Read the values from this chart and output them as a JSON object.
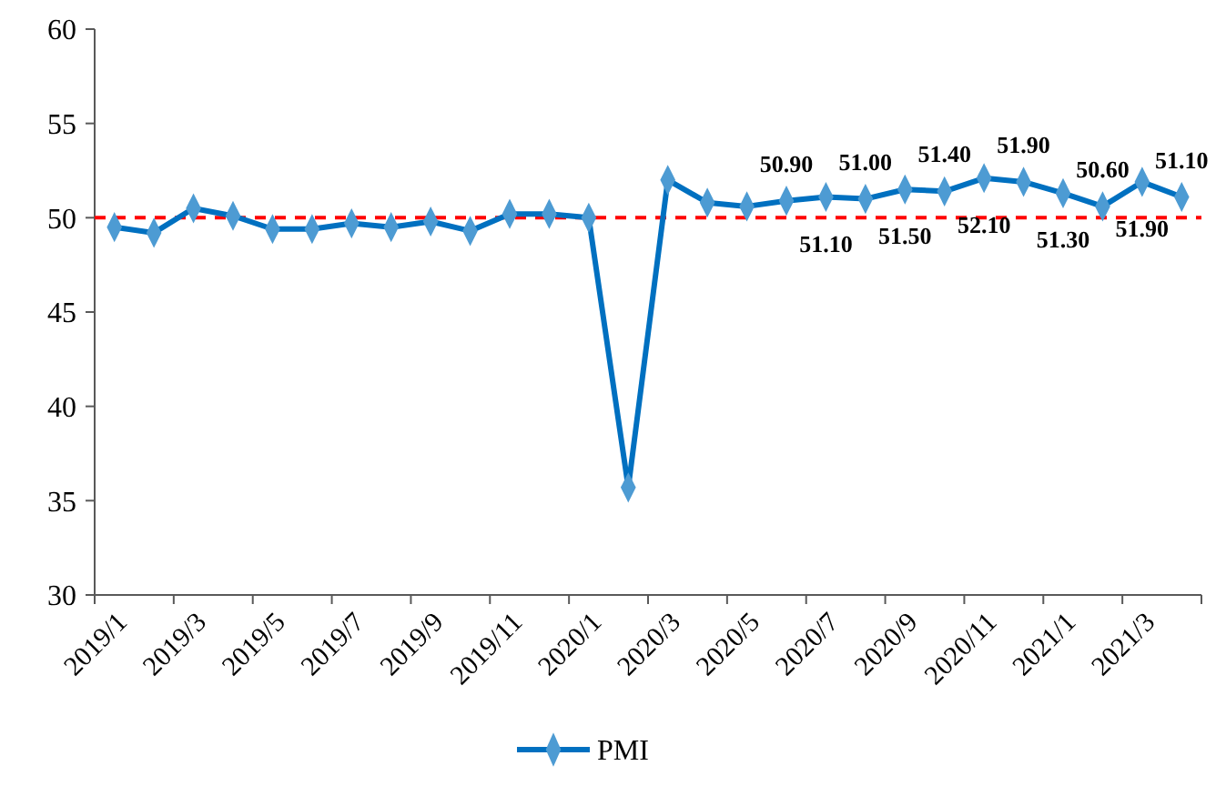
{
  "chart_data": {
    "type": "line",
    "categories": [
      "2019/1",
      null,
      "2019/3",
      null,
      "2019/5",
      null,
      "2019/7",
      null,
      "2019/9",
      null,
      "2019/11",
      null,
      "2020/1",
      null,
      "2020/3",
      null,
      "2020/5",
      null,
      "2020/7",
      null,
      "2020/9",
      null,
      "2020/11",
      null,
      "2021/1",
      null,
      "2021/3",
      null
    ],
    "series": [
      {
        "name": "PMI",
        "color": "#0070c0",
        "values": [
          49.5,
          49.2,
          50.5,
          50.1,
          49.4,
          49.4,
          49.7,
          49.5,
          49.8,
          49.3,
          50.2,
          50.2,
          50.0,
          35.7,
          52.0,
          50.8,
          50.6,
          50.9,
          51.1,
          51.0,
          51.5,
          51.4,
          52.1,
          51.9,
          51.3,
          50.6,
          51.9,
          51.1
        ],
        "value_labels": [
          null,
          null,
          null,
          null,
          null,
          null,
          null,
          null,
          null,
          null,
          null,
          null,
          null,
          null,
          null,
          null,
          null,
          "50.90",
          "51.10",
          "51.00",
          "51.50",
          "51.40",
          "52.10",
          "51.90",
          "51.30",
          "50.60",
          "51.90",
          "51.10"
        ]
      }
    ],
    "ylim": [
      30,
      60
    ],
    "yticks": [
      30,
      35,
      40,
      45,
      50,
      55,
      60
    ],
    "ref_lines": [
      {
        "axis": "y",
        "value": 50,
        "color": "#ff0000",
        "line_style": "dashed"
      }
    ],
    "marker": "diamond",
    "line_style": "solid",
    "grid": false,
    "legend": "bottom"
  }
}
